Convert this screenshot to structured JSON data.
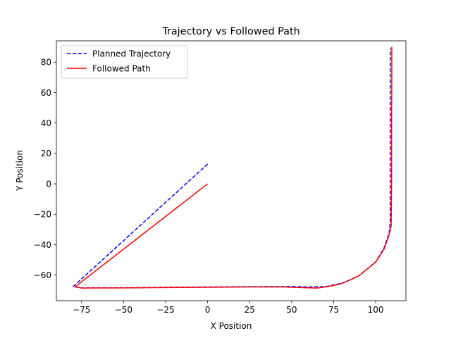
{
  "chart_data": {
    "type": "line",
    "title": "Trajectory vs Followed Path",
    "xlabel": "X Position",
    "ylabel": "Y Position",
    "xlim": [
      -90,
      118
    ],
    "ylim": [
      -76.8,
      94
    ],
    "x_ticks": [
      -75,
      -50,
      -25,
      0,
      25,
      50,
      75,
      100
    ],
    "y_ticks": [
      -60,
      -40,
      -20,
      0,
      20,
      40,
      60,
      80
    ],
    "grid": false,
    "legend_position": "top-left",
    "series": [
      {
        "name": "Planned Trajectory",
        "color": "#0000ff",
        "style": "dashed",
        "points": [
          [
            0,
            13
          ],
          [
            -80,
            -67.5
          ],
          [
            -75,
            -68.4
          ],
          [
            -50,
            -68.3
          ],
          [
            -25,
            -68.0
          ],
          [
            0,
            -67.8
          ],
          [
            25,
            -67.6
          ],
          [
            50,
            -67.5
          ],
          [
            60,
            -67.8
          ],
          [
            70,
            -67.6
          ],
          [
            80,
            -65.3
          ],
          [
            90,
            -60.5
          ],
          [
            100,
            -51.3
          ],
          [
            105,
            -42.2
          ],
          [
            108,
            -32.5
          ],
          [
            108.7,
            -25
          ],
          [
            108.7,
            0
          ],
          [
            108.7,
            40
          ],
          [
            108.7,
            70
          ],
          [
            108.8,
            89
          ]
        ]
      },
      {
        "name": "Followed Path",
        "color": "#ff0000",
        "style": "solid",
        "points": [
          [
            0,
            0
          ],
          [
            -79,
            -67.8
          ],
          [
            -75,
            -68.5
          ],
          [
            -50,
            -68.4
          ],
          [
            -25,
            -68.2
          ],
          [
            0,
            -68.0
          ],
          [
            25,
            -67.8
          ],
          [
            45,
            -67.8
          ],
          [
            55,
            -68.2
          ],
          [
            65,
            -68.5
          ],
          [
            72,
            -67.5
          ],
          [
            80,
            -65.5
          ],
          [
            90,
            -60.5
          ],
          [
            100,
            -51.5
          ],
          [
            105,
            -43
          ],
          [
            108,
            -33.5
          ],
          [
            109.2,
            -28
          ],
          [
            109.5,
            0
          ],
          [
            109.5,
            40
          ],
          [
            109.6,
            70
          ],
          [
            109.6,
            90
          ]
        ]
      }
    ]
  }
}
